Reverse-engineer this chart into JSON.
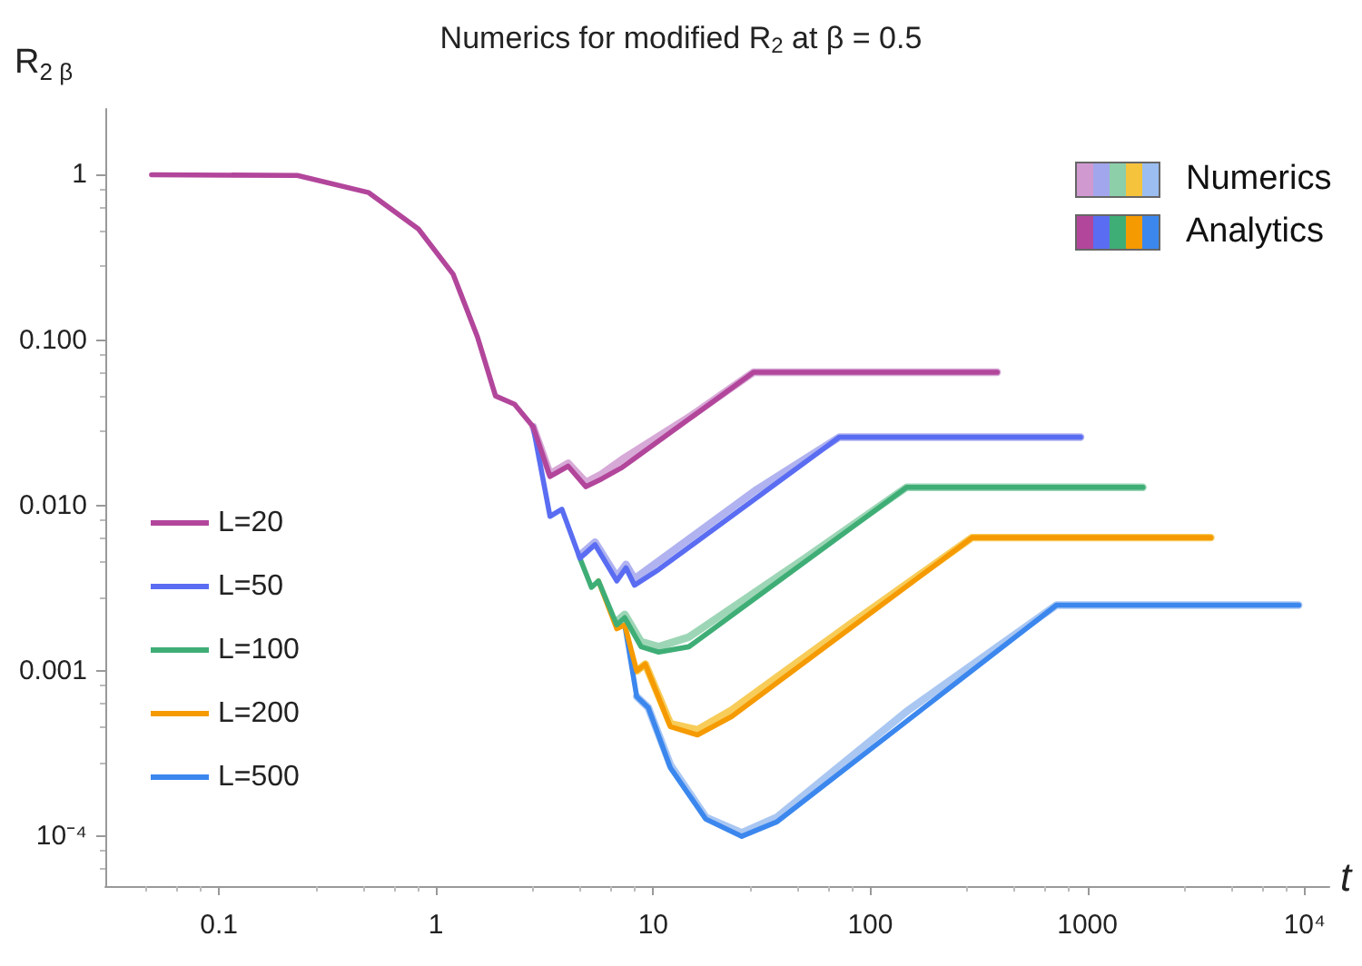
{
  "chart_data": {
    "type": "line",
    "title": "Numerics for modified R$_{2}$ at β = 0.5",
    "xlabel": "t",
    "ylabel": "R$_{2 β}$",
    "log": "xy",
    "xlim": [
      0.03,
      13000
    ],
    "xticks": [
      0.1,
      1,
      10,
      100,
      1000,
      {
        "value": 10000,
        "label": "10⁴"
      }
    ],
    "ylim": [
      5e-05,
      2.5
    ],
    "yticks": [
      1,
      {
        "value": 0.1,
        "label": "0.100"
      },
      {
        "value": 0.01,
        "label": "0.010"
      },
      {
        "value": 0.001,
        "label": "0.001"
      },
      {
        "value": 0.0001,
        "label": "10⁻⁴"
      }
    ],
    "grid": false,
    "legend": "left",
    "marker": "none",
    "line_style": "solid",
    "annotations": [
      "Numerics",
      "Analytics"
    ],
    "series": [
      {
        "color": "#d09ad0",
        "x": [
          2.8,
          3.35,
          4.06,
          4.9,
          5.8,
          7.2,
          15,
          29,
          384
        ],
        "values": [
          0.03,
          0.0155,
          0.018,
          0.0138,
          0.0155,
          0.019,
          0.035,
          0.064,
          0.064
        ]
      },
      {
        "color": "#a2a6ec",
        "x": [
          4.6,
          5.4,
          6.8,
          7.5,
          8.2,
          10.6,
          30,
          72,
          930
        ],
        "values": [
          0.005,
          0.006,
          0.0037,
          0.0044,
          0.0036,
          0.0046,
          0.0125,
          0.0259,
          0.0259
        ]
      },
      {
        "color": "#8ccfa9",
        "x": [
          6.8,
          7.4,
          8.8,
          10.6,
          14.6,
          50,
          147,
          1800
        ],
        "values": [
          0.002,
          0.0022,
          0.0015,
          0.0014,
          0.0016,
          0.0048,
          0.0129,
          0.0129
        ]
      },
      {
        "color": "#f6c33c",
        "x": [
          8.4,
          9.2,
          12,
          16,
          23,
          80,
          294,
          3700
        ],
        "values": [
          0.001,
          0.0011,
          0.00048,
          0.00044,
          0.00058,
          0.0019,
          0.0064,
          0.0064
        ]
      },
      {
        "color": "#9bbdf0",
        "x": [
          8.4,
          9.5,
          12,
          17.5,
          25.6,
          37,
          150,
          720,
          9400
        ],
        "values": [
          0.0007,
          0.0006,
          0.00027,
          0.00013,
          0.000105,
          0.00013,
          0.00058,
          0.0025,
          0.0025
        ]
      },
      {
        "name": "L=20",
        "color": "#b2469b",
        "x": [
          0.049,
          0.23,
          0.49,
          0.83,
          1.2,
          1.55,
          1.88,
          2.3,
          2.8,
          3.35,
          4.06,
          4.9,
          5.8,
          7.2,
          29,
          384
        ],
        "values": [
          1,
          0.99,
          0.78,
          0.47,
          0.25,
          0.105,
          0.046,
          0.041,
          0.03,
          0.015,
          0.0173,
          0.013,
          0.0145,
          0.017,
          0.064,
          0.064
        ]
      },
      {
        "name": "L=50",
        "color": "#5a6df2",
        "x": [
          2.8,
          3.35,
          3.8,
          4.6,
          5.4,
          6.8,
          7.5,
          8.2,
          10.6,
          72,
          930
        ],
        "values": [
          0.03,
          0.0086,
          0.0095,
          0.0048,
          0.0058,
          0.0035,
          0.0042,
          0.0033,
          0.0041,
          0.0259,
          0.0259
        ]
      },
      {
        "name": "L=100",
        "color": "#3fae76",
        "x": [
          4.6,
          5.2,
          5.6,
          6.8,
          7.4,
          8.8,
          10.6,
          14.6,
          147,
          1800
        ],
        "values": [
          0.0048,
          0.0032,
          0.0035,
          0.0019,
          0.0021,
          0.0014,
          0.0013,
          0.0014,
          0.0129,
          0.0129
        ]
      },
      {
        "name": "L=200",
        "color": "#f59a00",
        "x": [
          5.6,
          6.8,
          7.4,
          8.4,
          9.2,
          12,
          16,
          23,
          294,
          3700
        ],
        "values": [
          0.0035,
          0.0018,
          0.0019,
          0.001,
          0.0011,
          0.00046,
          0.00041,
          0.00053,
          0.0064,
          0.0064
        ]
      },
      {
        "name": "L=500",
        "color": "#3b87ee",
        "x": [
          7.4,
          8.4,
          9.5,
          12,
          17.5,
          25.6,
          37,
          720,
          9400
        ],
        "values": [
          0.0019,
          0.0007,
          0.0006,
          0.00026,
          0.000127,
          0.0001,
          0.000122,
          0.0025,
          0.0025
        ]
      }
    ]
  }
}
